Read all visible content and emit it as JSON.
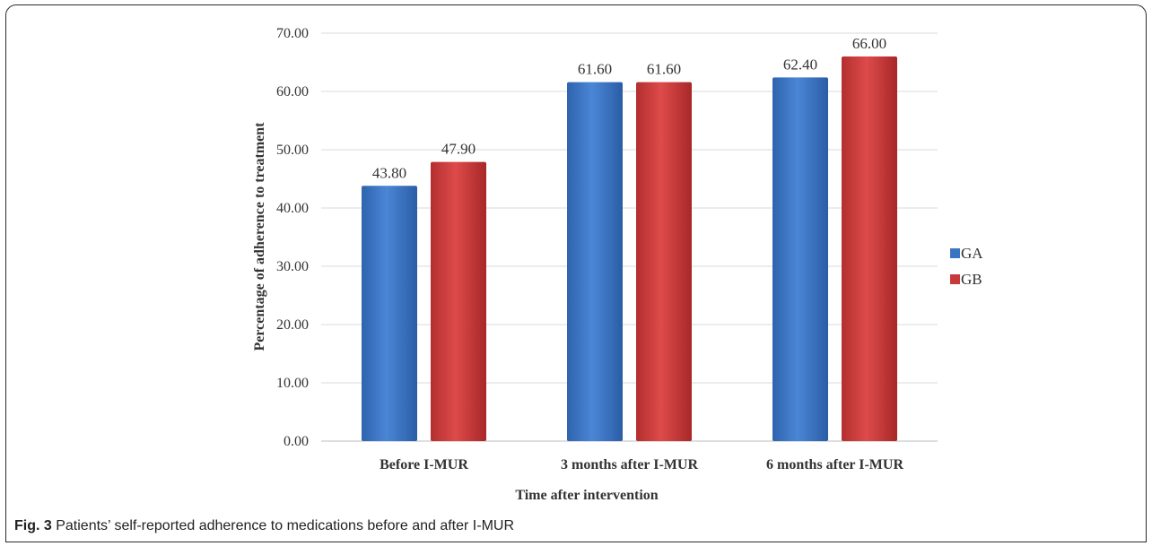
{
  "chart_data": {
    "type": "bar",
    "categories": [
      "Before I-MUR",
      "3 months after I-MUR",
      "6 months after I-MUR"
    ],
    "series": [
      {
        "name": "GA",
        "values": [
          43.8,
          61.6,
          62.4
        ],
        "labels": [
          "43.80",
          "61.60",
          "62.40"
        ],
        "color": "#3a75c4"
      },
      {
        "name": "GB",
        "values": [
          47.9,
          61.6,
          66.0
        ],
        "labels": [
          "47.90",
          "61.60",
          "66.00"
        ],
        "color": "#c8393a"
      }
    ],
    "xlabel": "Time after intervention",
    "ylabel": "Percentage of  adherence to treatment",
    "ylim": [
      0,
      70
    ],
    "yticks": [
      "0.00",
      "10.00",
      "20.00",
      "30.00",
      "40.00",
      "50.00",
      "60.00",
      "70.00"
    ],
    "grid": true,
    "legend": "right"
  },
  "caption": {
    "fig_label": "Fig. 3",
    "text": " Patients’ self-reported adherence to medications before and after I-MUR"
  }
}
